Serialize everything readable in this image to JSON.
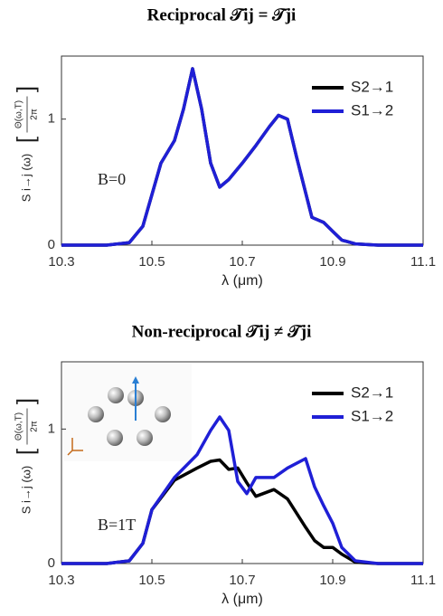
{
  "chart_data": [
    {
      "type": "line",
      "title": "Reciprocal 𝒯ij = 𝒯ji",
      "annotation": "B=0",
      "x_label": "λ (μm)",
      "y_label": "S i→j (ω)",
      "y_label_fraction": {
        "numerator": "Θ(ω,T)",
        "denominator": "2π"
      },
      "x": [
        10.3,
        10.4,
        10.45,
        10.48,
        10.5,
        10.52,
        10.55,
        10.57,
        10.59,
        10.61,
        10.63,
        10.65,
        10.67,
        10.7,
        10.73,
        10.76,
        10.78,
        10.8,
        10.82,
        10.854,
        10.88,
        10.9,
        10.92,
        10.95,
        11.0,
        11.1
      ],
      "series": [
        {
          "name": "S2→1",
          "color": "#000000",
          "values": [
            0,
            0,
            0.02,
            0.15,
            0.4,
            0.65,
            0.83,
            1.08,
            1.4,
            1.08,
            0.65,
            0.46,
            0.52,
            0.65,
            0.79,
            0.94,
            1.03,
            1.0,
            0.7,
            0.22,
            0.18,
            0.11,
            0.04,
            0.01,
            0,
            0
          ]
        },
        {
          "name": "S1→2",
          "color": "#1f1fd6",
          "values": [
            0,
            0,
            0.02,
            0.15,
            0.4,
            0.65,
            0.83,
            1.08,
            1.4,
            1.08,
            0.65,
            0.46,
            0.52,
            0.65,
            0.79,
            0.94,
            1.03,
            1.0,
            0.7,
            0.22,
            0.18,
            0.11,
            0.04,
            0.01,
            0,
            0
          ]
        }
      ],
      "xlim": [
        10.3,
        11.1
      ],
      "xticks": [
        10.3,
        10.5,
        10.7,
        10.9,
        11.1
      ],
      "ylim": [
        0,
        1.5
      ],
      "yticks": [
        0,
        1
      ],
      "legend": "upper right"
    },
    {
      "type": "line",
      "title": "Non-reciprocal 𝒯ij ≠ 𝒯ji",
      "annotation": "B=1T",
      "x_label": "λ (μm)",
      "y_label": "S i→j (ω)",
      "y_label_fraction": {
        "numerator": "Θ(ω,T)",
        "denominator": "2π"
      },
      "x": [
        10.3,
        10.4,
        10.45,
        10.48,
        10.5,
        10.55,
        10.6,
        10.63,
        10.65,
        10.67,
        10.69,
        10.71,
        10.73,
        10.77,
        10.8,
        10.84,
        10.86,
        10.88,
        10.9,
        10.92,
        10.95,
        11.0,
        11.1
      ],
      "series": [
        {
          "name": "S2→1",
          "color": "#000000",
          "values": [
            0,
            0,
            0.02,
            0.15,
            0.4,
            0.62,
            0.71,
            0.76,
            0.77,
            0.7,
            0.71,
            0.6,
            0.5,
            0.55,
            0.48,
            0.27,
            0.17,
            0.12,
            0.12,
            0.07,
            0.01,
            0,
            0
          ]
        },
        {
          "name": "S1→2",
          "color": "#1f1fd6",
          "values": [
            0,
            0,
            0.02,
            0.15,
            0.4,
            0.64,
            0.81,
            0.99,
            1.09,
            0.99,
            0.61,
            0.52,
            0.64,
            0.64,
            0.71,
            0.78,
            0.57,
            0.43,
            0.3,
            0.12,
            0.02,
            0,
            0
          ]
        }
      ],
      "xlim": [
        10.3,
        11.1
      ],
      "xticks": [
        10.3,
        10.5,
        10.7,
        10.9,
        11.1
      ],
      "ylim": [
        0,
        1.5
      ],
      "yticks": [
        0,
        1
      ],
      "legend": "upper right"
    }
  ]
}
